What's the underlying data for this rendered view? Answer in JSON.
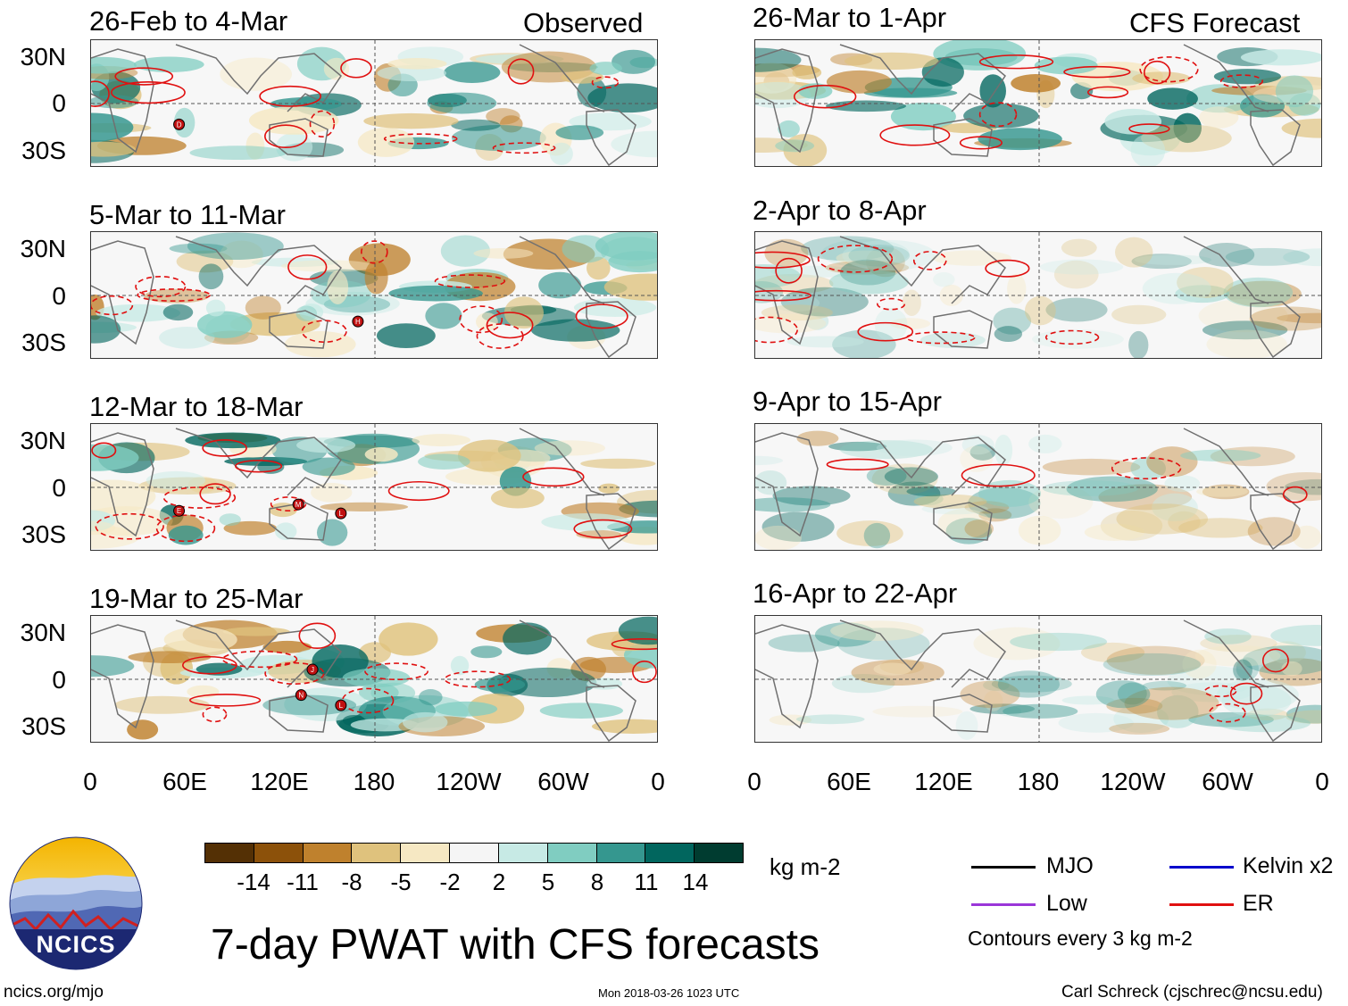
{
  "columns": {
    "observed_label": "Observed",
    "forecast_label": "CFS Forecast"
  },
  "observed_panels": [
    {
      "title": "26-Feb to 4-Mar"
    },
    {
      "title": "5-Mar to 11-Mar"
    },
    {
      "title": "12-Mar to 18-Mar"
    },
    {
      "title": "19-Mar to 25-Mar"
    }
  ],
  "forecast_panels": [
    {
      "title": "26-Mar to 1-Apr"
    },
    {
      "title": "2-Apr to 8-Apr"
    },
    {
      "title": "9-Apr to 15-Apr"
    },
    {
      "title": "16-Apr to 22-Apr"
    }
  ],
  "y_axis": [
    "30N",
    "0",
    "30S"
  ],
  "x_axis": [
    "0",
    "60E",
    "120E",
    "180",
    "120W",
    "60W",
    "0"
  ],
  "colorbar": {
    "unit": "kg m-2",
    "ticks": [
      "-14",
      "-11",
      "-8",
      "-5",
      "-2",
      "2",
      "5",
      "8",
      "11",
      "14"
    ],
    "colors": [
      "#543005",
      "#8c510a",
      "#bf812d",
      "#dfc27d",
      "#f6e8c3",
      "#f5f5f5",
      "#c7eae5",
      "#80cdc1",
      "#35978f",
      "#01665e",
      "#003c30"
    ]
  },
  "legend": {
    "items": [
      {
        "label": "MJO",
        "color": "#000000"
      },
      {
        "label": "Kelvin x2",
        "color": "#0000cc"
      },
      {
        "label": "Low",
        "color": "#9a36d9"
      },
      {
        "label": "ER",
        "color": "#e01010"
      }
    ],
    "note": "Contours every 3 kg m-2"
  },
  "storm_markers": [
    {
      "panel": 0,
      "letter": "D"
    },
    {
      "panel": 1,
      "letter": "H"
    },
    {
      "panel": 2,
      "letter": "E"
    },
    {
      "panel": 2,
      "letter": "M"
    },
    {
      "panel": 2,
      "letter": "L"
    },
    {
      "panel": 3,
      "letter": "J"
    },
    {
      "panel": 3,
      "letter": "N"
    },
    {
      "panel": 3,
      "letter": "L"
    }
  ],
  "logo_text": "NCICS",
  "title": "7-day PWAT with CFS forecasts",
  "footer": {
    "url": "ncics.org/mjo",
    "timestamp": "Mon 2018-03-26 1023 UTC",
    "author": "Carl Schreck (cjschrec@ncsu.edu)"
  }
}
